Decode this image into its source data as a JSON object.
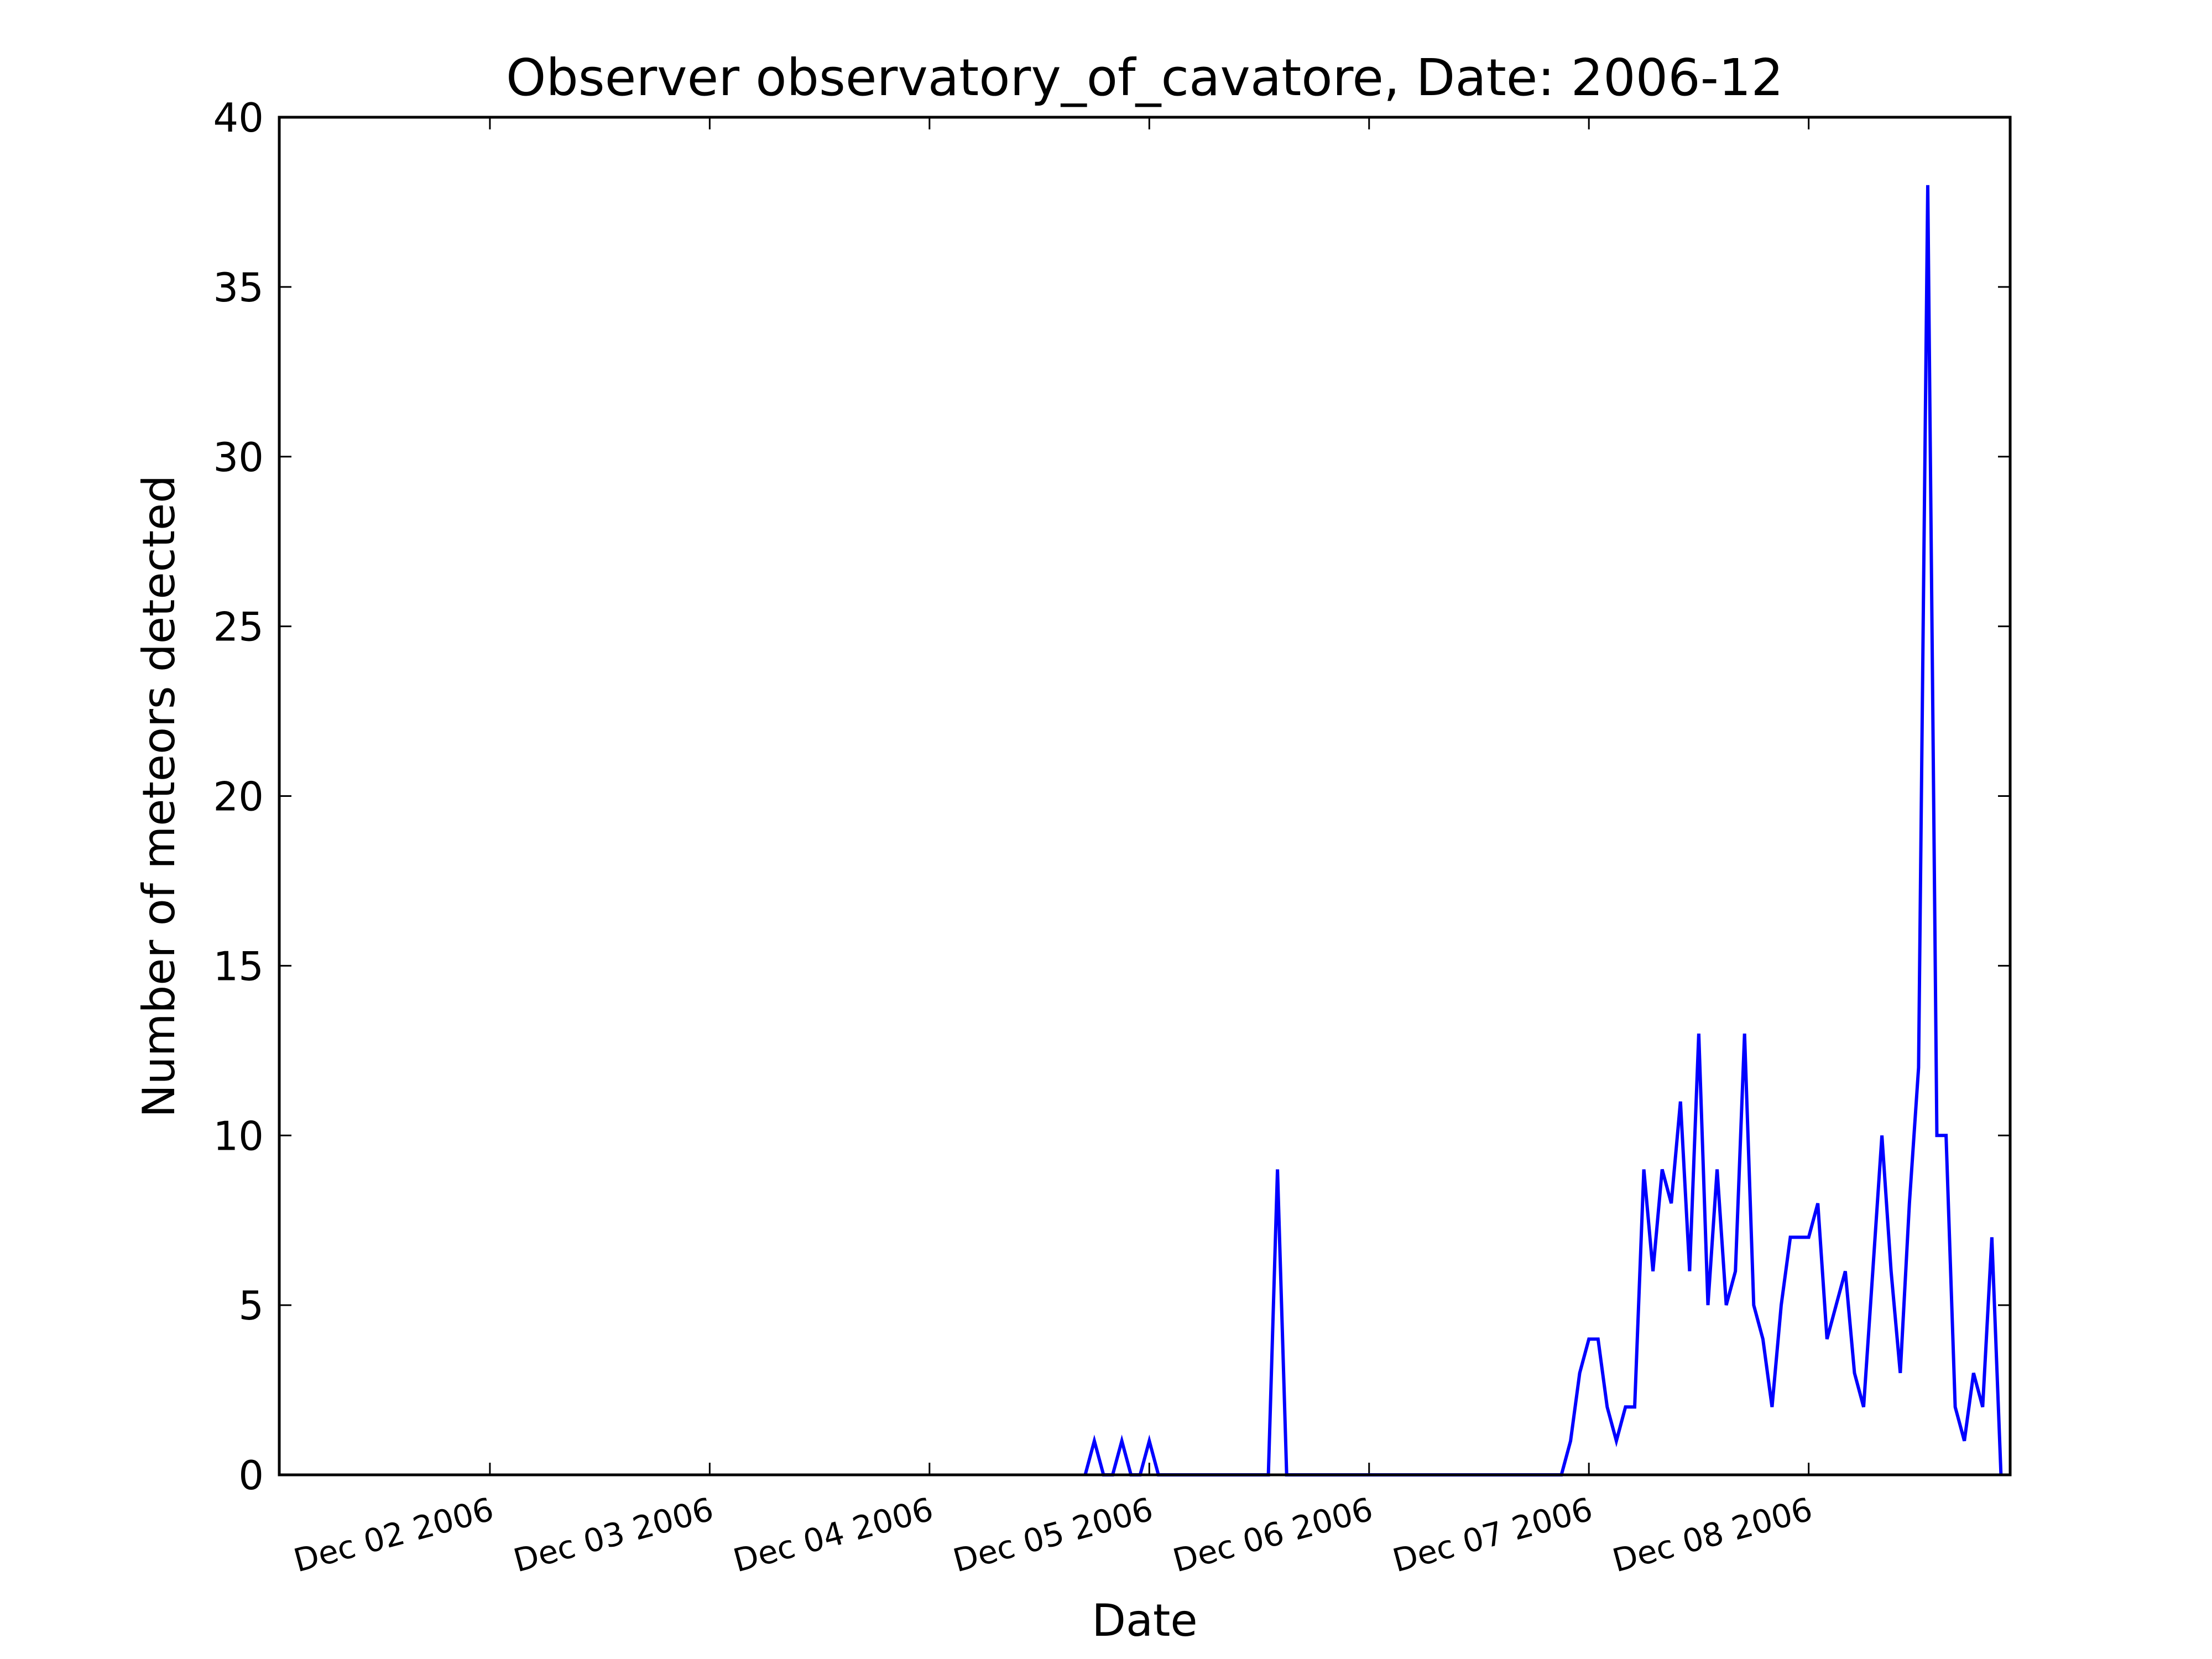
{
  "chart_data": {
    "type": "line",
    "title": "Observer observatory_of_cavatore, Date: 2006-12",
    "xlabel": "Date",
    "ylabel": "Number of meteors detected",
    "ylim": [
      0,
      40
    ],
    "xlim": [
      "2006-12-01 01:00",
      "2006-12-08 22:00"
    ],
    "yticks": [
      0,
      5,
      10,
      15,
      20,
      25,
      30,
      35,
      40
    ],
    "xticks": [
      {
        "date": "2006-12-02",
        "label": "Dec 02 2006"
      },
      {
        "date": "2006-12-03",
        "label": "Dec 03 2006"
      },
      {
        "date": "2006-12-04",
        "label": "Dec 04 2006"
      },
      {
        "date": "2006-12-05",
        "label": "Dec 05 2006"
      },
      {
        "date": "2006-12-06",
        "label": "Dec 06 2006"
      },
      {
        "date": "2006-12-07",
        "label": "Dec 07 2006"
      },
      {
        "date": "2006-12-08",
        "label": "Dec 08 2006"
      }
    ],
    "grid": false,
    "line_color": "#0000ff",
    "series": [
      {
        "x": [
          "2006-12-04 17:00",
          "2006-12-04 18:00",
          "2006-12-04 19:00",
          "2006-12-04 20:00",
          "2006-12-04 21:00",
          "2006-12-04 22:00",
          "2006-12-04 23:00",
          "2006-12-05 00:00",
          "2006-12-05 01:00",
          "2006-12-05 02:00",
          "2006-12-05 13:00",
          "2006-12-05 14:00",
          "2006-12-05 15:00",
          "2006-12-06 21:00",
          "2006-12-06 22:00",
          "2006-12-06 23:00",
          "2006-12-07 00:00",
          "2006-12-07 01:00",
          "2006-12-07 02:00",
          "2006-12-07 03:00",
          "2006-12-07 04:00",
          "2006-12-07 05:00",
          "2006-12-07 06:00",
          "2006-12-07 07:00",
          "2006-12-07 08:00",
          "2006-12-07 09:00",
          "2006-12-07 10:00",
          "2006-12-07 11:00",
          "2006-12-07 12:00",
          "2006-12-07 13:00",
          "2006-12-07 14:00",
          "2006-12-07 15:00",
          "2006-12-07 16:00",
          "2006-12-07 17:00",
          "2006-12-07 18:00",
          "2006-12-07 19:00",
          "2006-12-07 20:00",
          "2006-12-07 21:00",
          "2006-12-07 22:00",
          "2006-12-07 23:00",
          "2006-12-08 00:00",
          "2006-12-08 01:00",
          "2006-12-08 02:00",
          "2006-12-08 03:00",
          "2006-12-08 04:00",
          "2006-12-08 05:00",
          "2006-12-08 06:00",
          "2006-12-08 07:00",
          "2006-12-08 08:00",
          "2006-12-08 09:00",
          "2006-12-08 10:00",
          "2006-12-08 11:00",
          "2006-12-08 12:00",
          "2006-12-08 13:00",
          "2006-12-08 14:00",
          "2006-12-08 15:00",
          "2006-12-08 16:00",
          "2006-12-08 17:00",
          "2006-12-08 18:00",
          "2006-12-08 19:00",
          "2006-12-08 20:00",
          "2006-12-08 21:00"
        ],
        "values": [
          0,
          1,
          0,
          0,
          1,
          0,
          0,
          1,
          0,
          0,
          0,
          9,
          0,
          0,
          1,
          3,
          4,
          4,
          2,
          1,
          2,
          2,
          9,
          6,
          9,
          8,
          11,
          6,
          13,
          5,
          9,
          5,
          6,
          13,
          5,
          4,
          2,
          5,
          7,
          7,
          7,
          8,
          4,
          5,
          6,
          3,
          2,
          6,
          10,
          6,
          3,
          8,
          12,
          38,
          10,
          10,
          2,
          1,
          3,
          2,
          7,
          0
        ]
      }
    ]
  }
}
